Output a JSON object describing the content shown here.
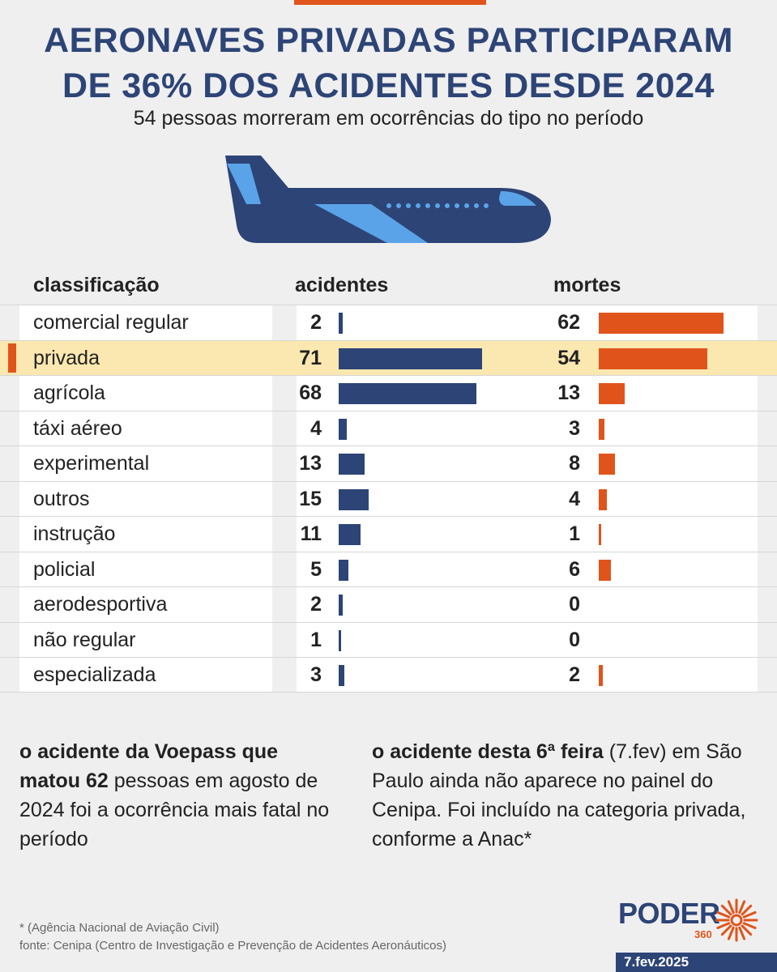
{
  "title_line1": "AERONAVES PRIVADAS PARTICIPARAM",
  "title_line2": "DE 36% DOS ACIDENTES DESDE 2024",
  "subtitle": "54 pessoas morreram em ocorrências do tipo no período",
  "colors": {
    "navy": "#2d4476",
    "orange": "#e0541b",
    "highlight": "#fbe8b0",
    "light_blue": "#5ba3e8"
  },
  "icons": [
    "airplane-icon",
    "poder360-sun-icon"
  ],
  "chart_data": {
    "type": "table",
    "columns": [
      "classificação",
      "acidentes",
      "mortes"
    ],
    "highlighted_row": "privada",
    "rows": [
      {
        "label": "comercial regular",
        "acidentes": 2,
        "mortes": 62
      },
      {
        "label": "privada",
        "acidentes": 71,
        "mortes": 54
      },
      {
        "label": "agrícola",
        "acidentes": 68,
        "mortes": 13
      },
      {
        "label": "táxi aéreo",
        "acidentes": 4,
        "mortes": 3
      },
      {
        "label": "experimental",
        "acidentes": 13,
        "mortes": 8
      },
      {
        "label": "outros",
        "acidentes": 15,
        "mortes": 4
      },
      {
        "label": "instrução",
        "acidentes": 11,
        "mortes": 1
      },
      {
        "label": "policial",
        "acidentes": 5,
        "mortes": 6
      },
      {
        "label": "aerodesportiva",
        "acidentes": 2,
        "mortes": 0
      },
      {
        "label": "não regular",
        "acidentes": 1,
        "mortes": 0
      },
      {
        "label": "especializada",
        "acidentes": 3,
        "mortes": 2
      }
    ]
  },
  "note_left": {
    "bold": "o acidente da Voepass que matou 62",
    "rest": " pessoas em agosto de 2024 foi a ocorrência mais fatal no período"
  },
  "note_right": {
    "bold": "o acidente desta 6ª feira",
    "rest": " (7.fev) em São Paulo ainda não aparece no painel do Cenipa. Foi incluído na categoria privada, conforme a Anac*"
  },
  "footnote": "* (Agência Nacional de Aviação Civil)",
  "source": "fonte: Cenipa (Centro de Investigação e Prevenção de Acidentes Aeronáuticos)",
  "logo_text": "PODER",
  "logo_sub": "360",
  "date": "7.fev.2025"
}
